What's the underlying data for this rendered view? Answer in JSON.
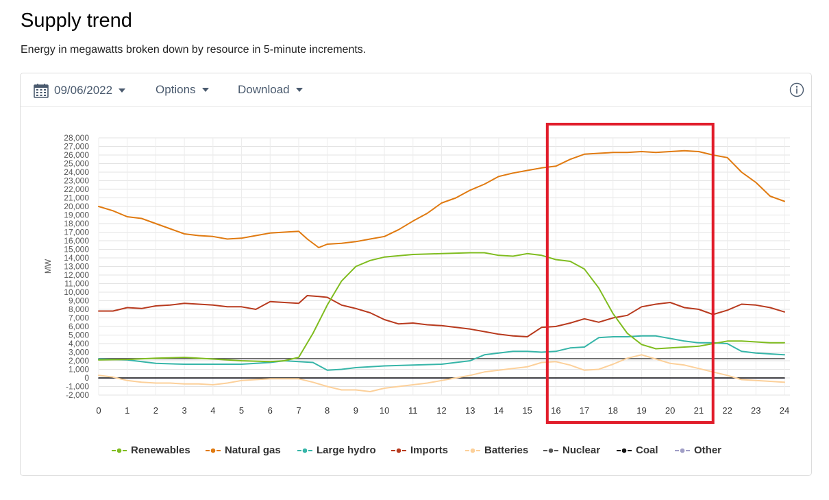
{
  "page": {
    "title": "Supply trend",
    "subtitle": "Energy in megawatts broken down by resource in 5-minute increments."
  },
  "toolbar": {
    "date": "09/06/2022",
    "options_label": "Options",
    "download_label": "Download",
    "icons": {
      "date": "calendar-icon",
      "info": "info-icon"
    }
  },
  "chart_data": {
    "type": "line",
    "title": "",
    "xlabel": "",
    "ylabel": "MW",
    "xlim": [
      0,
      24
    ],
    "ylim": [
      -2000,
      28000
    ],
    "x_ticks": [
      "0",
      "1",
      "2",
      "3",
      "4",
      "5",
      "6",
      "7",
      "8",
      "9",
      "10",
      "11",
      "12",
      "13",
      "14",
      "15",
      "16",
      "17",
      "18",
      "19",
      "20",
      "21",
      "22",
      "23",
      "24"
    ],
    "y_ticks": [
      "28,000",
      "27,000",
      "26,000",
      "25,000",
      "24,000",
      "23,000",
      "22,000",
      "21,000",
      "20,000",
      "19,000",
      "18,000",
      "17,000",
      "16,000",
      "15,000",
      "14,000",
      "13,000",
      "12,000",
      "11,000",
      "10,000",
      "9,000",
      "8,000",
      "7,000",
      "6,000",
      "5,000",
      "4,000",
      "3,000",
      "2,000",
      "1,000",
      "0",
      "-1,000",
      "-2,000"
    ],
    "grid": true,
    "legend_position": "bottom",
    "highlight": {
      "x_start": 15.7,
      "x_end": 21.5,
      "color": "#e11d2b"
    },
    "series": [
      {
        "name": "Renewables",
        "color": "#7fbc1f",
        "x": [
          0,
          1,
          2,
          3,
          4,
          5,
          6,
          6.5,
          7,
          7.5,
          8,
          8.5,
          9,
          9.5,
          10,
          11,
          12,
          13,
          13.5,
          14,
          14.5,
          15,
          15.5,
          16,
          16.5,
          17,
          17.5,
          18,
          18.5,
          19,
          19.5,
          20,
          20.5,
          21,
          21.5,
          22,
          22.5,
          23,
          23.5,
          24
        ],
        "y": [
          2100,
          2150,
          2300,
          2400,
          2200,
          2000,
          1900,
          2000,
          2400,
          5200,
          8500,
          11300,
          13000,
          13700,
          14100,
          14400,
          14500,
          14600,
          14600,
          14300,
          14200,
          14500,
          14300,
          13800,
          13600,
          12700,
          10500,
          7500,
          5200,
          3900,
          3400,
          3500,
          3600,
          3700,
          4000,
          4300,
          4300,
          4200,
          4100,
          4100
        ]
      },
      {
        "name": "Natural gas",
        "color": "#e07a10",
        "x": [
          0,
          0.5,
          1,
          1.5,
          2,
          2.5,
          3,
          3.5,
          4,
          4.5,
          5,
          5.5,
          6,
          6.5,
          7,
          7.3,
          7.7,
          8,
          8.5,
          9,
          9.5,
          10,
          10.5,
          11,
          11.5,
          12,
          12.5,
          13,
          13.5,
          14,
          14.5,
          15,
          15.5,
          16,
          16.5,
          17,
          17.5,
          18,
          18.5,
          19,
          19.5,
          20,
          20.5,
          21,
          21.5,
          22,
          22.5,
          23,
          23.5,
          24
        ],
        "y": [
          20000,
          19500,
          18800,
          18600,
          18000,
          17400,
          16800,
          16600,
          16500,
          16200,
          16300,
          16600,
          16900,
          17000,
          17100,
          16200,
          15200,
          15600,
          15700,
          15900,
          16200,
          16500,
          17300,
          18300,
          19200,
          20400,
          21000,
          21900,
          22600,
          23500,
          23900,
          24200,
          24500,
          24700,
          25500,
          26100,
          26200,
          26300,
          26300,
          26400,
          26300,
          26400,
          26500,
          26400,
          26000,
          25700,
          24000,
          22800,
          21200,
          20600
        ]
      },
      {
        "name": "Large hydro",
        "color": "#36b5a8",
        "x": [
          0,
          1,
          2,
          3,
          4,
          5,
          6,
          6.5,
          7,
          7.5,
          8,
          8.5,
          9,
          9.5,
          10,
          11,
          12,
          12.5,
          13,
          13.5,
          14,
          14.5,
          15,
          15.5,
          16,
          16.5,
          17,
          17.5,
          18,
          18.5,
          19,
          19.5,
          20,
          20.5,
          21,
          21.5,
          22,
          22.5,
          23,
          23.5,
          24
        ],
        "y": [
          2200,
          2100,
          1700,
          1600,
          1600,
          1600,
          1800,
          2000,
          1900,
          1800,
          900,
          1000,
          1200,
          1300,
          1400,
          1500,
          1600,
          1800,
          2000,
          2700,
          2900,
          3100,
          3100,
          3000,
          3100,
          3500,
          3600,
          4700,
          4800,
          4800,
          4900,
          4900,
          4600,
          4300,
          4100,
          4100,
          4000,
          3100,
          2900,
          2800,
          2700
        ]
      },
      {
        "name": "Imports",
        "color": "#b83a1e",
        "x": [
          0,
          0.5,
          1,
          1.5,
          2,
          2.5,
          3,
          3.5,
          4,
          4.5,
          5,
          5.5,
          6,
          6.5,
          7,
          7.3,
          7.7,
          8,
          8.5,
          9,
          9.5,
          10,
          10.5,
          11,
          11.5,
          12,
          12.5,
          13,
          13.5,
          14,
          14.5,
          15,
          15.5,
          16,
          16.5,
          17,
          17.5,
          18,
          18.5,
          19,
          19.5,
          20,
          20.5,
          21,
          21.5,
          22,
          22.5,
          23,
          23.5,
          24
        ],
        "y": [
          7800,
          7800,
          8200,
          8100,
          8400,
          8500,
          8700,
          8600,
          8500,
          8300,
          8300,
          8000,
          8900,
          8800,
          8700,
          9600,
          9500,
          9400,
          8500,
          8100,
          7600,
          6800,
          6300,
          6400,
          6200,
          6100,
          5900,
          5700,
          5400,
          5100,
          4900,
          4800,
          5900,
          6000,
          6400,
          6900,
          6500,
          7000,
          7300,
          8300,
          8600,
          8800,
          8200,
          8000,
          7400,
          7900,
          8600,
          8500,
          8200,
          7700
        ]
      },
      {
        "name": "Batteries",
        "color": "#fcd09a",
        "x": [
          0,
          0.5,
          1,
          1.5,
          2,
          2.5,
          3,
          3.5,
          4,
          4.5,
          5,
          5.5,
          6,
          6.5,
          7,
          7.5,
          8,
          8.5,
          9,
          9.5,
          10,
          10.5,
          11,
          11.5,
          12,
          12.5,
          13,
          13.5,
          14,
          14.5,
          15,
          15.5,
          16,
          16.5,
          17,
          17.5,
          18,
          18.5,
          19,
          19.5,
          20,
          20.5,
          21,
          21.5,
          22,
          22.5,
          23,
          23.5,
          24
        ],
        "y": [
          300,
          100,
          -300,
          -500,
          -600,
          -600,
          -700,
          -700,
          -800,
          -600,
          -300,
          -200,
          -100,
          -100,
          -100,
          -500,
          -1000,
          -1400,
          -1400,
          -1600,
          -1200,
          -1000,
          -800,
          -600,
          -300,
          0,
          300,
          700,
          900,
          1100,
          1300,
          1800,
          1900,
          1500,
          900,
          1000,
          1600,
          2300,
          2700,
          2200,
          1700,
          1500,
          1100,
          700,
          300,
          -200,
          -300,
          -400,
          -500
        ]
      },
      {
        "name": "Nuclear",
        "color": "#555555",
        "x": [
          0,
          24
        ],
        "y": [
          2250,
          2250
        ]
      },
      {
        "name": "Coal",
        "color": "#111111",
        "x": [
          0,
          24
        ],
        "y": [
          0,
          0
        ]
      },
      {
        "name": "Other",
        "color": "#a09ec6",
        "x": [
          0,
          24
        ],
        "y": [
          -30,
          -30
        ]
      }
    ]
  }
}
